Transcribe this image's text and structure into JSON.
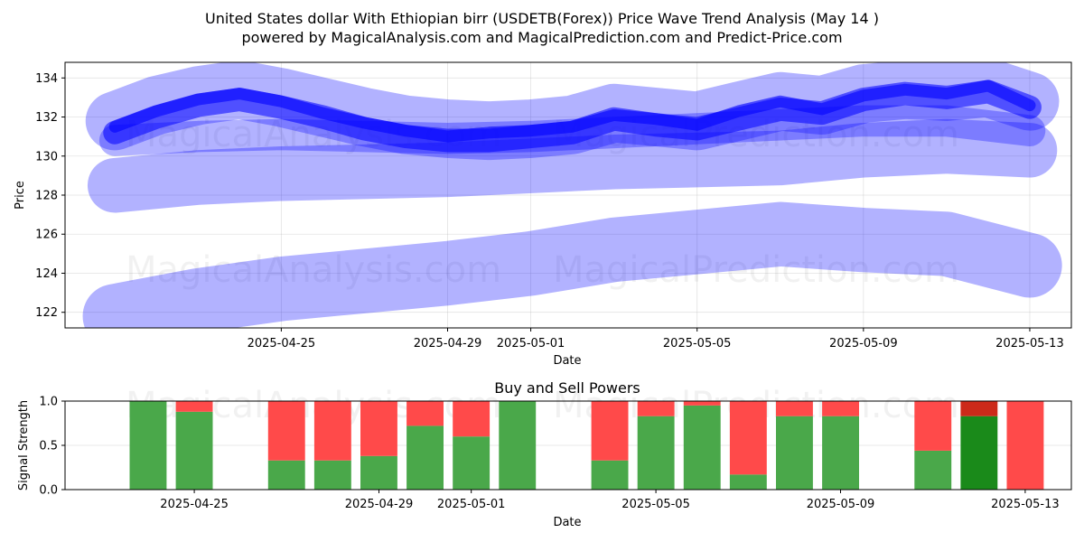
{
  "title_line1": "United States dollar With Ethiopian birr (USDETB(Forex)) Price Wave Trend Analysis (May 14 )",
  "title_line2": "powered by MagicalAnalysis.com and MagicalPrediction.com and Predict-Price.com",
  "watermarks": [
    "MagicalAnalysis.com",
    "MagicalPrediction.com"
  ],
  "colors": {
    "band": "#0000ff",
    "buy": "#4aa84a",
    "sell": "#ff4a4a",
    "buy_strong": "#1a8a1a",
    "sell_strong": "#cc2a1a"
  },
  "chart_data": [
    {
      "type": "line",
      "title": "",
      "xlabel": "Date",
      "ylabel": "Price",
      "ylim": [
        121.2,
        134.8
      ],
      "y_ticks": [
        "122",
        "124",
        "126",
        "128",
        "130",
        "132",
        "134"
      ],
      "x_ticks": [
        "2025-04-25",
        "2025-04-29",
        "2025-05-01",
        "2025-05-05",
        "2025-05-09",
        "2025-05-13"
      ],
      "x_tick_days": [
        4,
        8,
        10,
        14,
        18,
        22
      ],
      "x_range_days": [
        -1.2,
        23.0
      ],
      "series": [
        {
          "name": "upper-band",
          "x": [
            0,
            1,
            2,
            3,
            4,
            5,
            6,
            7,
            8,
            9,
            10,
            11,
            12,
            13,
            14,
            15,
            16,
            17,
            18,
            19,
            20,
            21,
            22
          ],
          "values": [
            131.8,
            132.6,
            133.1,
            133.4,
            133.0,
            132.5,
            132.0,
            131.6,
            131.4,
            131.3,
            131.4,
            131.6,
            132.2,
            132.0,
            131.8,
            132.3,
            132.8,
            132.6,
            133.2,
            133.4,
            133.3,
            133.5,
            132.8
          ],
          "width": 3.0,
          "opacity": 0.3
        },
        {
          "name": "upper-band-2",
          "x": [
            0,
            1,
            2,
            3,
            4,
            5,
            6,
            7,
            8,
            9,
            10,
            11,
            12,
            13,
            14,
            15,
            16,
            17,
            18,
            19,
            20,
            21,
            22
          ],
          "values": [
            131.2,
            132.0,
            132.6,
            132.9,
            132.5,
            132.0,
            131.4,
            131.0,
            130.8,
            130.8,
            131.0,
            131.2,
            131.9,
            131.6,
            131.4,
            131.9,
            132.4,
            132.2,
            132.9,
            133.2,
            133.0,
            133.3,
            132.5
          ],
          "width": 1.2,
          "opacity": 0.55
        },
        {
          "name": "mid-band",
          "x": [
            0,
            2,
            4,
            6,
            8,
            10,
            12,
            14,
            15,
            16,
            18,
            20,
            22
          ],
          "values": [
            130.8,
            131.0,
            131.1,
            131.0,
            130.9,
            131.0,
            131.2,
            131.4,
            131.5,
            131.6,
            131.8,
            131.8,
            131.3
          ],
          "width": 1.6,
          "opacity": 0.3
        },
        {
          "name": "low-band",
          "x": [
            0,
            2,
            4,
            6,
            8,
            10,
            12,
            14,
            16,
            18,
            20,
            22
          ],
          "values": [
            128.5,
            128.9,
            129.1,
            129.2,
            129.3,
            129.5,
            129.7,
            129.8,
            129.9,
            130.3,
            130.5,
            130.3
          ],
          "width": 2.8,
          "opacity": 0.3
        },
        {
          "name": "bottom-band",
          "x": [
            0,
            2,
            4,
            6,
            8,
            10,
            12,
            14,
            16,
            18,
            20,
            22
          ],
          "values": [
            121.8,
            122.6,
            123.2,
            123.6,
            124.0,
            124.5,
            125.2,
            125.6,
            126.0,
            125.7,
            125.5,
            124.4
          ],
          "width": 3.3,
          "opacity": 0.3
        },
        {
          "name": "core-trend",
          "x": [
            0,
            1,
            2,
            3,
            4,
            5,
            6,
            7,
            8,
            9,
            10,
            11,
            12,
            13,
            14,
            15,
            16,
            17,
            18,
            19,
            20,
            21,
            22
          ],
          "values": [
            131.5,
            132.3,
            132.9,
            133.2,
            132.8,
            132.2,
            131.7,
            131.3,
            131.0,
            131.2,
            131.3,
            131.5,
            132.1,
            131.9,
            131.6,
            132.3,
            132.8,
            132.4,
            133.1,
            133.4,
            133.2,
            133.6,
            132.6
          ],
          "width": 0.6,
          "opacity": 0.6
        }
      ]
    },
    {
      "type": "bar",
      "title": "Buy and Sell Powers",
      "xlabel": "Date",
      "ylabel": "Signal Strength",
      "ylim": [
        0,
        1.0
      ],
      "y_ticks": [
        "0.0",
        "0.5",
        "1.0"
      ],
      "x_ticks": [
        "2025-04-25",
        "2025-04-29",
        "2025-05-01",
        "2025-05-05",
        "2025-05-09",
        "2025-05-13"
      ],
      "x_tick_days": [
        4,
        8,
        10,
        14,
        18,
        22
      ],
      "x_range_days": [
        1.2,
        23.0
      ],
      "bars": [
        {
          "day": 3,
          "buy": 1.0,
          "sell": 0.0,
          "strong": false
        },
        {
          "day": 4,
          "buy": 0.88,
          "sell": 0.12,
          "strong": false
        },
        {
          "day": 6,
          "buy": 0.33,
          "sell": 0.67,
          "strong": false
        },
        {
          "day": 7,
          "buy": 0.33,
          "sell": 0.67,
          "strong": false
        },
        {
          "day": 8,
          "buy": 0.38,
          "sell": 0.62,
          "strong": false
        },
        {
          "day": 9,
          "buy": 0.72,
          "sell": 0.28,
          "strong": false
        },
        {
          "day": 10,
          "buy": 0.6,
          "sell": 0.4,
          "strong": false
        },
        {
          "day": 11,
          "buy": 1.0,
          "sell": 0.0,
          "strong": false
        },
        {
          "day": 13,
          "buy": 0.33,
          "sell": 0.67,
          "strong": false
        },
        {
          "day": 14,
          "buy": 0.83,
          "sell": 0.17,
          "strong": false
        },
        {
          "day": 15,
          "buy": 0.95,
          "sell": 0.05,
          "strong": false
        },
        {
          "day": 16,
          "buy": 0.17,
          "sell": 0.83,
          "strong": false
        },
        {
          "day": 17,
          "buy": 0.83,
          "sell": 0.17,
          "strong": false
        },
        {
          "day": 18,
          "buy": 0.83,
          "sell": 0.17,
          "strong": false
        },
        {
          "day": 20,
          "buy": 0.44,
          "sell": 0.56,
          "strong": false
        },
        {
          "day": 21,
          "buy": 0.83,
          "sell": 0.17,
          "strong": true
        },
        {
          "day": 22,
          "buy": 0.0,
          "sell": 1.0,
          "strong": false
        }
      ]
    }
  ]
}
